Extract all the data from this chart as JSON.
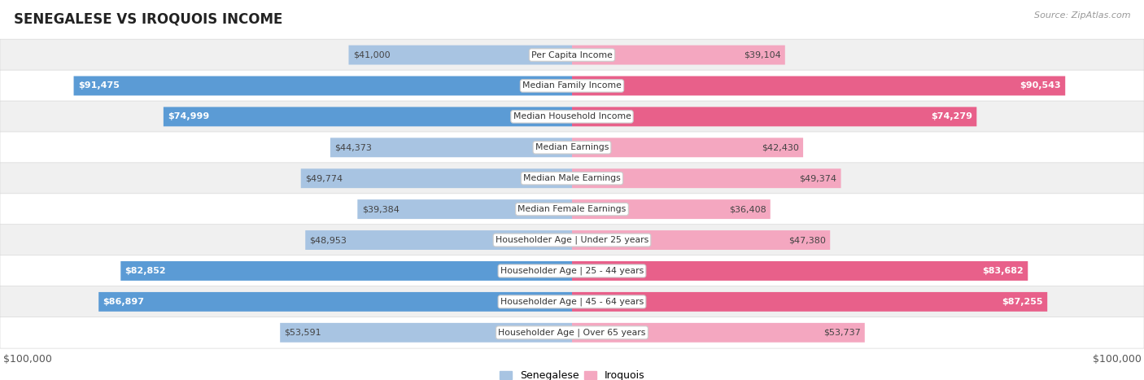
{
  "title": "SENEGALESE VS IROQUOIS INCOME",
  "source": "Source: ZipAtlas.com",
  "categories": [
    "Per Capita Income",
    "Median Family Income",
    "Median Household Income",
    "Median Earnings",
    "Median Male Earnings",
    "Median Female Earnings",
    "Householder Age | Under 25 years",
    "Householder Age | 25 - 44 years",
    "Householder Age | 45 - 64 years",
    "Householder Age | Over 65 years"
  ],
  "senegalese_values": [
    41000,
    91475,
    74999,
    44373,
    49774,
    39384,
    48953,
    82852,
    86897,
    53591
  ],
  "iroquois_values": [
    39104,
    90543,
    74279,
    42430,
    49374,
    36408,
    47380,
    83682,
    87255,
    53737
  ],
  "senegalese_labels": [
    "$41,000",
    "$91,475",
    "$74,999",
    "$44,373",
    "$49,774",
    "$39,384",
    "$48,953",
    "$82,852",
    "$86,897",
    "$53,591"
  ],
  "iroquois_labels": [
    "$39,104",
    "$90,543",
    "$74,279",
    "$42,430",
    "$49,374",
    "$36,408",
    "$47,380",
    "$83,682",
    "$87,255",
    "$53,737"
  ],
  "max_value": 100000,
  "senegalese_color_light": "#a8c4e2",
  "senegalese_color_dark": "#5b9bd5",
  "iroquois_color_light": "#f4a7c0",
  "iroquois_color_dark": "#e8608a",
  "row_bg_light": "#f0f0f0",
  "row_bg_dark": "#e8e8e8",
  "bar_height": 0.62,
  "dark_threshold": 0.65,
  "legend_senegalese": "Senegalese",
  "legend_iroquois": "Iroquois",
  "fig_width": 14.06,
  "fig_height": 4.67
}
